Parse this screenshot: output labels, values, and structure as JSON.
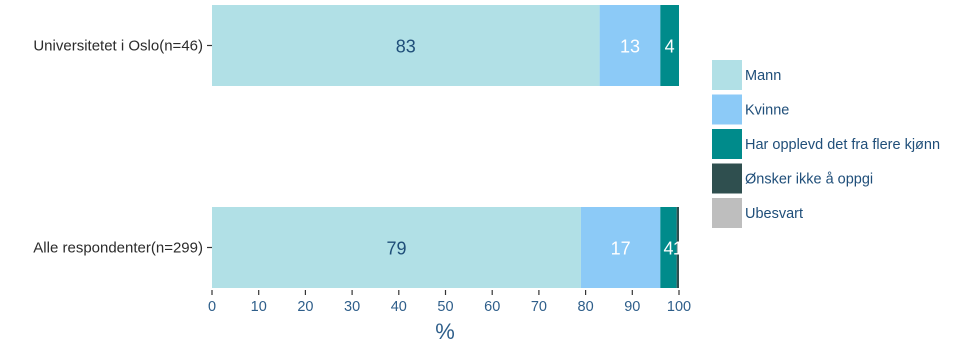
{
  "chart_data": {
    "type": "bar",
    "orientation": "horizontal",
    "stacked": true,
    "categories": [
      "Universitetet i Oslo(n=46)",
      "Alle respondenter(n=299)"
    ],
    "series": [
      {
        "name": "Mann",
        "values": [
          83,
          79
        ],
        "labels": [
          "83",
          "79"
        ],
        "color": "#b1e0e6",
        "label_color": "#1f4e79"
      },
      {
        "name": "Kvinne",
        "values": [
          13,
          17
        ],
        "labels": [
          "13",
          "17"
        ],
        "color": "#8ccaf7",
        "label_color": "#ffffff"
      },
      {
        "name": "Har opplevd det fra flere kjønn",
        "values": [
          4,
          3.5
        ],
        "labels": [
          "4",
          "4"
        ],
        "color": "#008b8b",
        "label_color": "#ffffff"
      },
      {
        "name": "Ønsker ikke å oppgi",
        "values": [
          0,
          0.5
        ],
        "labels": [
          "",
          "1"
        ],
        "color": "#2f4f4f",
        "label_color": "#ffffff"
      },
      {
        "name": "Ubesvart",
        "values": [
          0,
          0
        ],
        "labels": [
          "",
          ""
        ],
        "color": "#bebebe",
        "label_color": "#ffffff"
      }
    ],
    "xlabel": "%",
    "ylabel": "",
    "xlim": [
      0,
      100
    ],
    "xticks": [
      "0",
      "10",
      "20",
      "30",
      "40",
      "50",
      "60",
      "70",
      "80",
      "90",
      "100"
    ],
    "grid": false,
    "legend_position": "right"
  }
}
